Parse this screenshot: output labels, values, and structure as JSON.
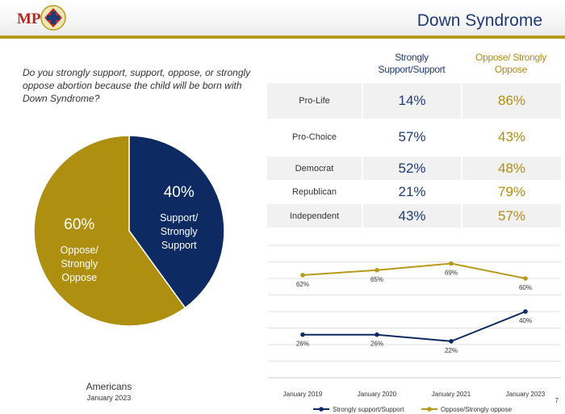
{
  "header": {
    "title": "Down Syndrome",
    "logo_text": "MP",
    "colors": {
      "accent": "#b79a1c",
      "title": "#1f3a78"
    }
  },
  "question": "Do you strongly support, support, oppose, or strongly oppose abortion because the child will be born with Down Syndrome?",
  "table": {
    "headers": [
      "Strongly Support/Support",
      "Oppose/ Strongly Oppose"
    ],
    "rows": [
      {
        "label": "Pro-Life",
        "support": "14%",
        "oppose": "86%"
      },
      {
        "label": "Pro-Choice",
        "support": "57%",
        "oppose": "43%"
      },
      {
        "label": "Democrat",
        "support": "52%",
        "oppose": "48%"
      },
      {
        "label": "Republican",
        "support": "21%",
        "oppose": "79%"
      },
      {
        "label": "Independent",
        "support": "43%",
        "oppose": "57%"
      }
    ]
  },
  "pie_caption": {
    "title": "Americans",
    "date": "January 2023"
  },
  "chart_data": [
    {
      "type": "pie",
      "slices": [
        {
          "label_lines": [
            "Support/",
            "Strongly",
            "Support"
          ],
          "value": 40,
          "value_label": "40%",
          "color": "#0d2a63"
        },
        {
          "label_lines": [
            "Oppose/",
            "Strongly",
            "Oppose"
          ],
          "value": 60,
          "value_label": "60%",
          "color": "#ae8f10"
        }
      ]
    },
    {
      "type": "line",
      "categories": [
        "January 2019",
        "January 2020",
        "January 2021",
        "January 2023"
      ],
      "series": [
        {
          "name": "Strongly support/Support",
          "values": [
            26,
            26,
            22,
            40
          ],
          "labels": [
            "26%",
            "26%",
            "22%",
            "40%"
          ],
          "color": "#0d2a63"
        },
        {
          "name": "Oppose/Strongly oppose",
          "values": [
            62,
            65,
            69,
            60
          ],
          "labels": [
            "62%",
            "65%",
            "69%",
            "60%"
          ],
          "color": "#b79a1c"
        }
      ],
      "ylim": [
        0,
        80
      ],
      "grid": true,
      "legend": "bottom"
    }
  ],
  "page_number": "7"
}
